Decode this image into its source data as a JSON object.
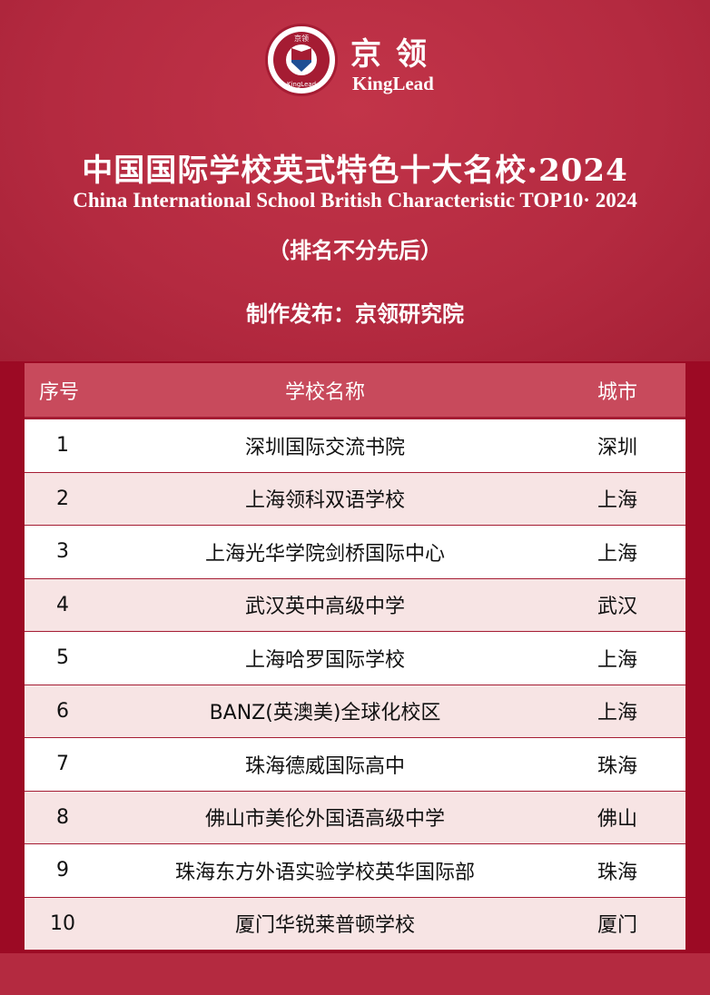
{
  "brand": {
    "name_cn": "京领",
    "name_en": "KingLead",
    "logo_top": "京领",
    "logo_bottom": "KingLead"
  },
  "title": "中国国际学校英式特色十大名校·2024",
  "subtitle": "China International School British Characteristic TOP10· 2024",
  "note": "（排名不分先后）",
  "publisher": "制作发布：京领研究院",
  "colors": {
    "primary": "#b42a40",
    "header": "#c84a5c",
    "alt_row": "#f7e4e4"
  },
  "table": {
    "headers": [
      "序号",
      "学校名称",
      "城市"
    ],
    "rows": [
      {
        "rank": "1",
        "school": "深圳国际交流书院",
        "city": "深圳"
      },
      {
        "rank": "2",
        "school": "上海领科双语学校",
        "city": "上海"
      },
      {
        "rank": "3",
        "school": "上海光华学院剑桥国际中心",
        "city": "上海"
      },
      {
        "rank": "4",
        "school": "武汉英中高级中学",
        "city": "武汉"
      },
      {
        "rank": "5",
        "school": "上海哈罗国际学校",
        "city": "上海"
      },
      {
        "rank": "6",
        "school": "BANZ(英澳美)全球化校区",
        "city": "上海"
      },
      {
        "rank": "7",
        "school": "珠海德威国际高中",
        "city": "珠海"
      },
      {
        "rank": "8",
        "school": "佛山市美伦外国语高级中学",
        "city": "佛山"
      },
      {
        "rank": "9",
        "school": "珠海东方外语实验学校英华国际部",
        "city": "珠海"
      },
      {
        "rank": "10",
        "school": "厦门华锐莱普顿学校",
        "city": "厦门"
      }
    ]
  }
}
